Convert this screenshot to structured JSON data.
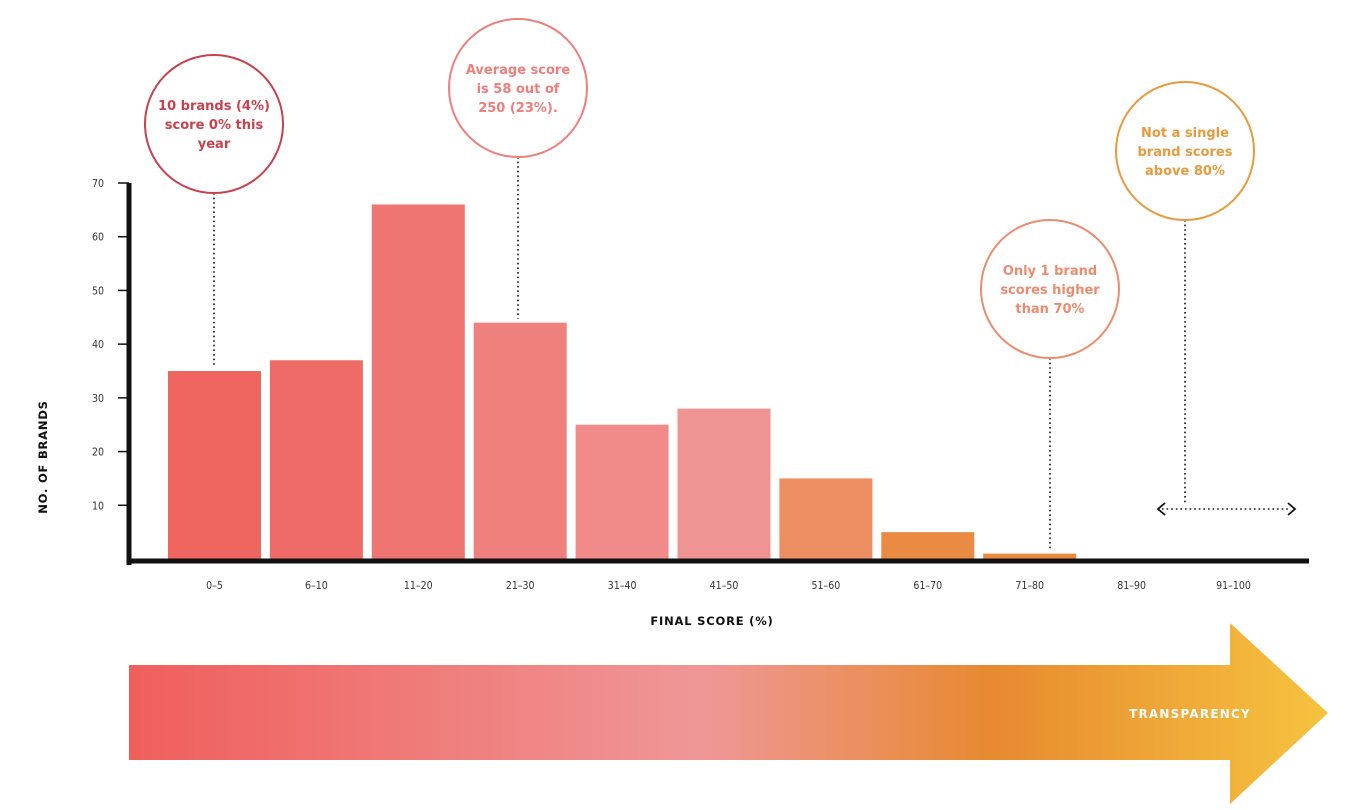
{
  "chart_data": {
    "type": "bar",
    "categories": [
      "0–5",
      "6–10",
      "11–20",
      "21–30",
      "31–40",
      "41–50",
      "51–60",
      "61–70",
      "71–80",
      "81–90",
      "91–100"
    ],
    "values": [
      35,
      37,
      66,
      44,
      25,
      28,
      15,
      5,
      1,
      0,
      0
    ],
    "xlabel": "FINAL SCORE (%)",
    "ylabel": "NO. OF BRANDS",
    "ylim": [
      0,
      70
    ],
    "yticks": [
      10,
      20,
      30,
      40,
      50,
      60,
      70
    ],
    "grid": false,
    "annotations": [
      {
        "text": "10 brands (4%) score 0% this year",
        "category": "0–5",
        "color": "#c8414c"
      },
      {
        "text": "Average score is 58 out of 250 (23%).",
        "category": "21–30",
        "color": "#ee7f7c"
      },
      {
        "text": "Only 1 brand scores higher than 70%",
        "category": "71–80",
        "color": "#ec8c6e"
      },
      {
        "text": "Not a single brand scores above 80%",
        "category": "81–90",
        "color": "#e99a3e"
      }
    ],
    "arrow_label": "TRANSPARENCY"
  },
  "colors": {
    "bars": [
      "#ef6560",
      "#ef6b67",
      "#ef7572",
      "#f0807d",
      "#f08b89",
      "#ef9492",
      "#ec8d62",
      "#e98b43",
      "#e98a3c"
    ],
    "axis": "#111111",
    "arrow_gradient": [
      "#ef5f5c",
      "#ef9797",
      "#e78a30",
      "#f6c33e"
    ]
  }
}
